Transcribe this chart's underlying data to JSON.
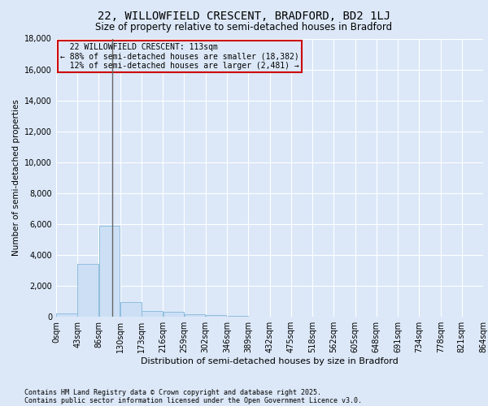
{
  "title": "22, WILLOWFIELD CRESCENT, BRADFORD, BD2 1LJ",
  "subtitle": "Size of property relative to semi-detached houses in Bradford",
  "xlabel": "Distribution of semi-detached houses by size in Bradford",
  "ylabel": "Number of semi-detached properties",
  "bin_labels": [
    "0sqm",
    "43sqm",
    "86sqm",
    "130sqm",
    "173sqm",
    "216sqm",
    "259sqm",
    "302sqm",
    "346sqm",
    "389sqm",
    "432sqm",
    "475sqm",
    "518sqm",
    "562sqm",
    "605sqm",
    "648sqm",
    "691sqm",
    "734sqm",
    "778sqm",
    "821sqm",
    "864sqm"
  ],
  "bin_edges": [
    0,
    43,
    86,
    130,
    173,
    216,
    259,
    302,
    346,
    389,
    432,
    475,
    518,
    562,
    605,
    648,
    691,
    734,
    778,
    821,
    864
  ],
  "bar_values": [
    200,
    3400,
    5900,
    950,
    350,
    300,
    150,
    100,
    50,
    20,
    10,
    5,
    3,
    2,
    1,
    1,
    0,
    0,
    0,
    0
  ],
  "bar_color": "#ccdff5",
  "bar_edgecolor": "#90bede",
  "property_size": 113,
  "property_label": "22 WILLOWFIELD CRESCENT: 113sqm",
  "pct_smaller": 88,
  "num_smaller": 18382,
  "pct_larger": 12,
  "num_larger": 2481,
  "vline_color": "#666666",
  "annotation_box_color": "#cc0000",
  "ylim": [
    0,
    18000
  ],
  "yticks": [
    0,
    2000,
    4000,
    6000,
    8000,
    10000,
    12000,
    14000,
    16000,
    18000
  ],
  "bg_color": "#dce8f8",
  "plot_bg_color": "#dce8f8",
  "grid_color": "#ffffff",
  "footer_line1": "Contains HM Land Registry data © Crown copyright and database right 2025.",
  "footer_line2": "Contains public sector information licensed under the Open Government Licence v3.0."
}
